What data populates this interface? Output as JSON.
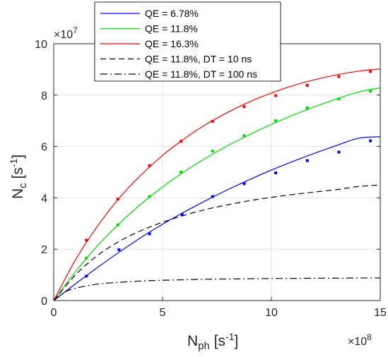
{
  "chart_data": {
    "type": "line",
    "xlabel": {
      "base": "N",
      "sub": "ph",
      "bracket_open": " [s",
      "sup": "-1",
      "bracket_close": "]"
    },
    "ylabel": {
      "base": "N",
      "sub": "c",
      "bracket_open": " [s",
      "sup": "-1",
      "bracket_close": "]"
    },
    "x_multiplier": {
      "prefix": "×10",
      "exponent": "8"
    },
    "y_multiplier": {
      "prefix": "×10",
      "exponent": "7"
    },
    "xlim": [
      0,
      15
    ],
    "ylim": [
      0,
      10
    ],
    "xticks": [
      0,
      5,
      10,
      15
    ],
    "yticks": [
      0,
      2,
      4,
      6,
      8,
      10
    ],
    "grid": true,
    "legend_position": "top",
    "series": [
      {
        "name": "QE = 6.78%",
        "color": "#0000ff",
        "style": "solid",
        "kind": "fit",
        "x": [
          0,
          1,
          2,
          3,
          4,
          5,
          6,
          7,
          8,
          9,
          10,
          11,
          12,
          13,
          14,
          15
        ],
        "y": [
          0,
          0.65,
          1.28,
          1.88,
          2.45,
          2.97,
          3.45,
          3.9,
          4.32,
          4.71,
          5.08,
          5.42,
          5.74,
          6.04,
          6.32,
          6.38
        ]
      },
      {
        "name": "QE = 11.8%",
        "color": "#00dd00",
        "style": "solid",
        "kind": "fit",
        "x": [
          0,
          1,
          2,
          3,
          4,
          5,
          6,
          7,
          8,
          9,
          10,
          11,
          12,
          13,
          14,
          15
        ],
        "y": [
          0,
          1.12,
          2.12,
          2.98,
          3.75,
          4.42,
          5.02,
          5.55,
          6.03,
          6.46,
          6.86,
          7.22,
          7.55,
          7.85,
          8.12,
          8.28
        ]
      },
      {
        "name": "QE = 16.3%",
        "color": "#ff0000",
        "style": "solid",
        "kind": "fit",
        "x": [
          0,
          1,
          2,
          3,
          4,
          5,
          6,
          7,
          8,
          9,
          10,
          11,
          12,
          13,
          14,
          15
        ],
        "y": [
          0,
          1.58,
          2.88,
          3.98,
          4.88,
          5.65,
          6.3,
          6.86,
          7.33,
          7.74,
          8.08,
          8.37,
          8.6,
          8.79,
          8.93,
          9.02
        ]
      },
      {
        "name": "QE = 11.8%, DT = 10 ns",
        "color": "#000000",
        "style": "dashed",
        "kind": "model",
        "x": [
          0,
          1,
          2,
          3,
          4,
          5,
          6,
          7,
          8,
          9,
          10,
          11,
          12,
          13,
          14,
          15
        ],
        "y": [
          0,
          1.0,
          1.75,
          2.3,
          2.72,
          3.05,
          3.32,
          3.55,
          3.73,
          3.89,
          4.02,
          4.13,
          4.23,
          4.32,
          4.44,
          4.5
        ]
      },
      {
        "name": "QE = 11.8%, DT = 100 ns",
        "color": "#000000",
        "style": "dashdot",
        "kind": "model",
        "x": [
          0,
          0.5,
          1,
          2,
          3,
          4,
          5,
          6,
          7,
          8,
          9,
          10,
          11,
          12,
          13,
          14,
          15
        ],
        "y": [
          0,
          0.33,
          0.48,
          0.64,
          0.71,
          0.76,
          0.79,
          0.81,
          0.83,
          0.84,
          0.85,
          0.86,
          0.86,
          0.87,
          0.87,
          0.88,
          0.88
        ]
      }
    ],
    "markers": [
      {
        "series": "QE = 6.78%",
        "color": "#0000ff",
        "x": [
          1.5,
          3.0,
          4.4,
          5.9,
          7.3,
          8.75,
          10.2,
          11.65,
          13.1,
          14.55
        ],
        "y": [
          0.95,
          1.98,
          2.6,
          3.35,
          4.05,
          4.55,
          4.97,
          5.45,
          5.78,
          6.22
        ]
      },
      {
        "series": "QE = 11.8%",
        "color": "#00dd00",
        "x": [
          1.5,
          2.95,
          4.4,
          5.85,
          7.3,
          8.75,
          10.2,
          11.65,
          13.1,
          14.55
        ],
        "y": [
          1.65,
          2.95,
          4.05,
          5.0,
          5.82,
          6.42,
          7.0,
          7.5,
          7.85,
          8.15
        ]
      },
      {
        "series": "QE = 16.3%",
        "color": "#ff0000",
        "x": [
          1.5,
          2.95,
          4.4,
          5.85,
          7.3,
          8.75,
          10.2,
          11.65,
          13.1,
          14.55
        ],
        "y": [
          2.35,
          3.95,
          5.25,
          6.2,
          6.98,
          7.55,
          7.98,
          8.38,
          8.72,
          8.92
        ]
      }
    ]
  }
}
